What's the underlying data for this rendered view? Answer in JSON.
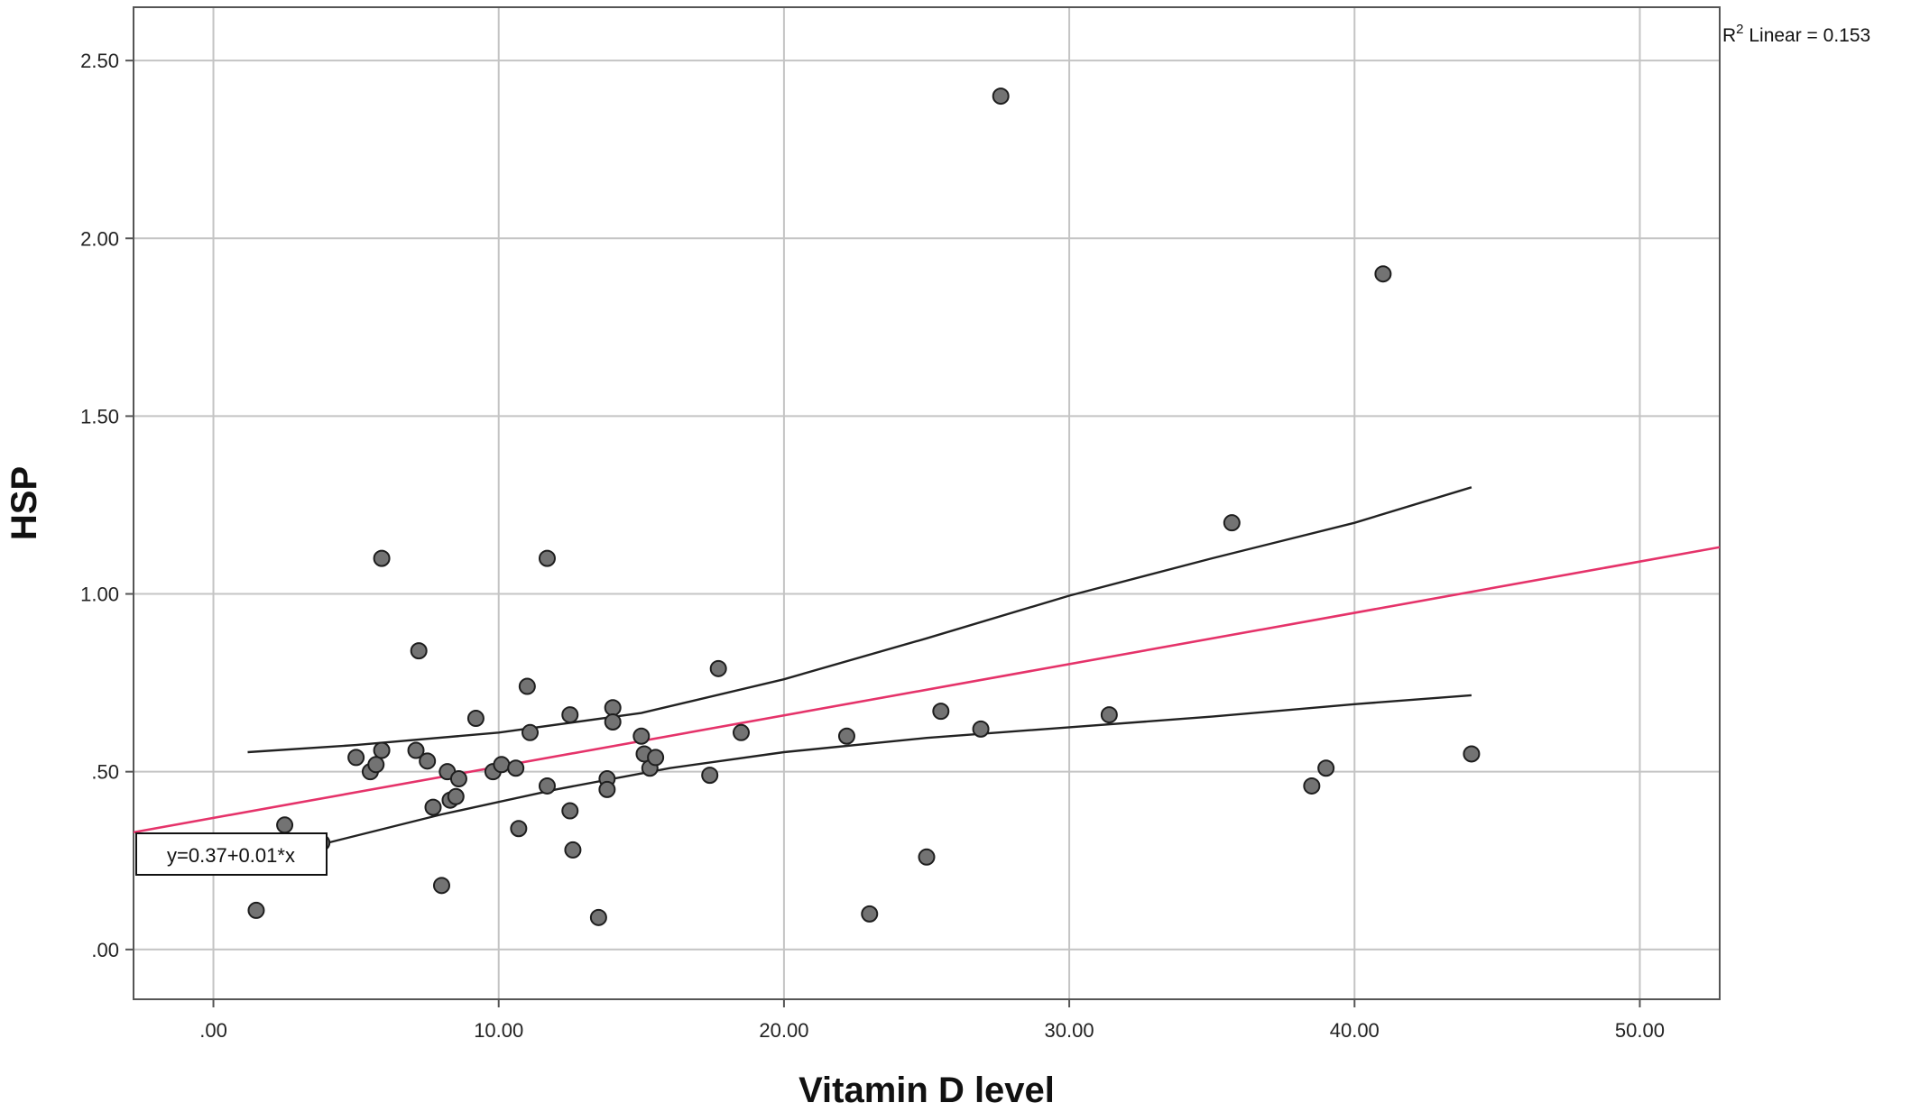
{
  "chart_data": {
    "type": "scatter",
    "xlabel": "Vitamin D level",
    "ylabel": "HSP",
    "xlim": [
      -2.8,
      52.8
    ],
    "ylim": [
      -0.14,
      2.65
    ],
    "x_ticks": [
      0,
      10,
      20,
      30,
      40,
      50
    ],
    "x_tick_labels": [
      ".00",
      "10.00",
      "20.00",
      "30.00",
      "40.00",
      "50.00"
    ],
    "y_ticks": [
      0,
      0.5,
      1.0,
      1.5,
      2.0,
      2.5
    ],
    "y_tick_labels": [
      ".00",
      ".50",
      "1.00",
      "1.50",
      "2.00",
      "2.50"
    ],
    "grid": true,
    "r2_label": {
      "prefix": "R",
      "sup": "2",
      "suffix": " Linear = 0.153"
    },
    "equation_label": "y=0.37+0.01*x",
    "fit_line": {
      "intercept": 0.37,
      "slope": 0.01442,
      "x_range": [
        -2.8,
        52.8
      ],
      "color": "#e5336a"
    },
    "ci_upper": {
      "x": [
        1.2,
        5,
        10,
        15,
        20,
        25,
        30,
        35,
        40,
        44.1
      ],
      "y": [
        0.555,
        0.575,
        0.61,
        0.665,
        0.76,
        0.875,
        0.995,
        1.1,
        1.2,
        1.3
      ]
    },
    "ci_lower": {
      "x": [
        3.5,
        8,
        12,
        16,
        20,
        25,
        30,
        35,
        40,
        44.1
      ],
      "y": [
        0.29,
        0.38,
        0.45,
        0.51,
        0.555,
        0.595,
        0.625,
        0.655,
        0.69,
        0.715
      ]
    },
    "points": [
      {
        "x": 1.5,
        "y": 0.11
      },
      {
        "x": 2.5,
        "y": 0.35
      },
      {
        "x": 3.8,
        "y": 0.3
      },
      {
        "x": 5.0,
        "y": 0.54
      },
      {
        "x": 5.5,
        "y": 0.5
      },
      {
        "x": 5.7,
        "y": 0.52
      },
      {
        "x": 5.9,
        "y": 0.56
      },
      {
        "x": 5.9,
        "y": 1.1
      },
      {
        "x": 7.1,
        "y": 0.56
      },
      {
        "x": 7.2,
        "y": 0.84
      },
      {
        "x": 7.5,
        "y": 0.53
      },
      {
        "x": 7.7,
        "y": 0.4
      },
      {
        "x": 8.0,
        "y": 0.18
      },
      {
        "x": 8.2,
        "y": 0.5
      },
      {
        "x": 8.3,
        "y": 0.42
      },
      {
        "x": 8.5,
        "y": 0.43
      },
      {
        "x": 8.6,
        "y": 0.48
      },
      {
        "x": 9.2,
        "y": 0.65
      },
      {
        "x": 9.8,
        "y": 0.5
      },
      {
        "x": 10.1,
        "y": 0.52
      },
      {
        "x": 10.6,
        "y": 0.51
      },
      {
        "x": 10.7,
        "y": 0.34
      },
      {
        "x": 11.0,
        "y": 0.74
      },
      {
        "x": 11.1,
        "y": 0.61
      },
      {
        "x": 11.7,
        "y": 0.46
      },
      {
        "x": 11.7,
        "y": 1.1
      },
      {
        "x": 12.5,
        "y": 0.66
      },
      {
        "x": 12.5,
        "y": 0.39
      },
      {
        "x": 12.6,
        "y": 0.28
      },
      {
        "x": 13.5,
        "y": 0.09
      },
      {
        "x": 13.8,
        "y": 0.48
      },
      {
        "x": 13.8,
        "y": 0.45
      },
      {
        "x": 14.0,
        "y": 0.68
      },
      {
        "x": 14.0,
        "y": 0.64
      },
      {
        "x": 15.0,
        "y": 0.6
      },
      {
        "x": 15.1,
        "y": 0.55
      },
      {
        "x": 15.3,
        "y": 0.51
      },
      {
        "x": 15.5,
        "y": 0.54
      },
      {
        "x": 17.4,
        "y": 0.49
      },
      {
        "x": 17.7,
        "y": 0.79
      },
      {
        "x": 18.5,
        "y": 0.61
      },
      {
        "x": 22.2,
        "y": 0.6
      },
      {
        "x": 23.0,
        "y": 0.1
      },
      {
        "x": 25.0,
        "y": 0.26
      },
      {
        "x": 25.5,
        "y": 0.67
      },
      {
        "x": 26.9,
        "y": 0.62
      },
      {
        "x": 27.6,
        "y": 2.4
      },
      {
        "x": 31.4,
        "y": 0.66
      },
      {
        "x": 35.7,
        "y": 1.2
      },
      {
        "x": 38.5,
        "y": 0.46
      },
      {
        "x": 39.0,
        "y": 0.51
      },
      {
        "x": 41.0,
        "y": 1.9
      },
      {
        "x": 44.1,
        "y": 0.55
      }
    ]
  }
}
